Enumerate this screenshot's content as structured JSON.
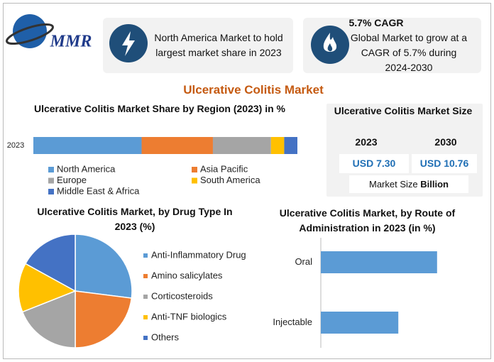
{
  "logo": "MMR",
  "callouts": [
    {
      "text": "North America Market to hold largest market share in 2023"
    },
    {
      "title": "5.7% CAGR",
      "text": "Global Market to grow at a CAGR of 5.7% during 2024-2030"
    }
  ],
  "title": "Ulcerative Colitis Market",
  "size_panel": {
    "title": "Ulcerative Colitis Market Size",
    "years": [
      "2023",
      "2030"
    ],
    "values": [
      "USD 7.30",
      "USD 10.76"
    ],
    "note": "Market Size",
    "note_unit": "Billion"
  },
  "chart_data": [
    {
      "type": "stacked-bar",
      "title": "Ulcerative Colitis Market Share by Region (2023) in %",
      "categories": [
        "2023"
      ],
      "series": [
        {
          "name": "North America",
          "color": "#5b9bd5",
          "values": [
            41
          ]
        },
        {
          "name": "Asia Pacific",
          "color": "#ed7d31",
          "values": [
            27
          ]
        },
        {
          "name": "Europe",
          "color": "#a5a5a5",
          "values": [
            22
          ]
        },
        {
          "name": "South America",
          "color": "#ffc000",
          "values": [
            5
          ]
        },
        {
          "name": "Middle East & Africa",
          "color": "#4472c4",
          "values": [
            5
          ]
        }
      ]
    },
    {
      "type": "pie",
      "title": "Ulcerative Colitis Market, by Drug Type In 2023 (%)",
      "categories": [
        "Anti-Inflammatory Drug",
        "Amino salicylates",
        "Corticosteroids",
        "Anti-TNF biologics",
        "Others"
      ],
      "values": [
        27,
        23,
        19,
        14,
        17
      ],
      "colors": [
        "#5b9bd5",
        "#ed7d31",
        "#a5a5a5",
        "#ffc000",
        "#4472c4"
      ]
    },
    {
      "type": "hbar",
      "title": "Ulcerative Colitis Market, by Route of Administration in 2023 (in %)",
      "categories": [
        "Oral",
        "Injectable"
      ],
      "values": [
        60,
        40
      ],
      "color": "#5b9bd5"
    }
  ]
}
